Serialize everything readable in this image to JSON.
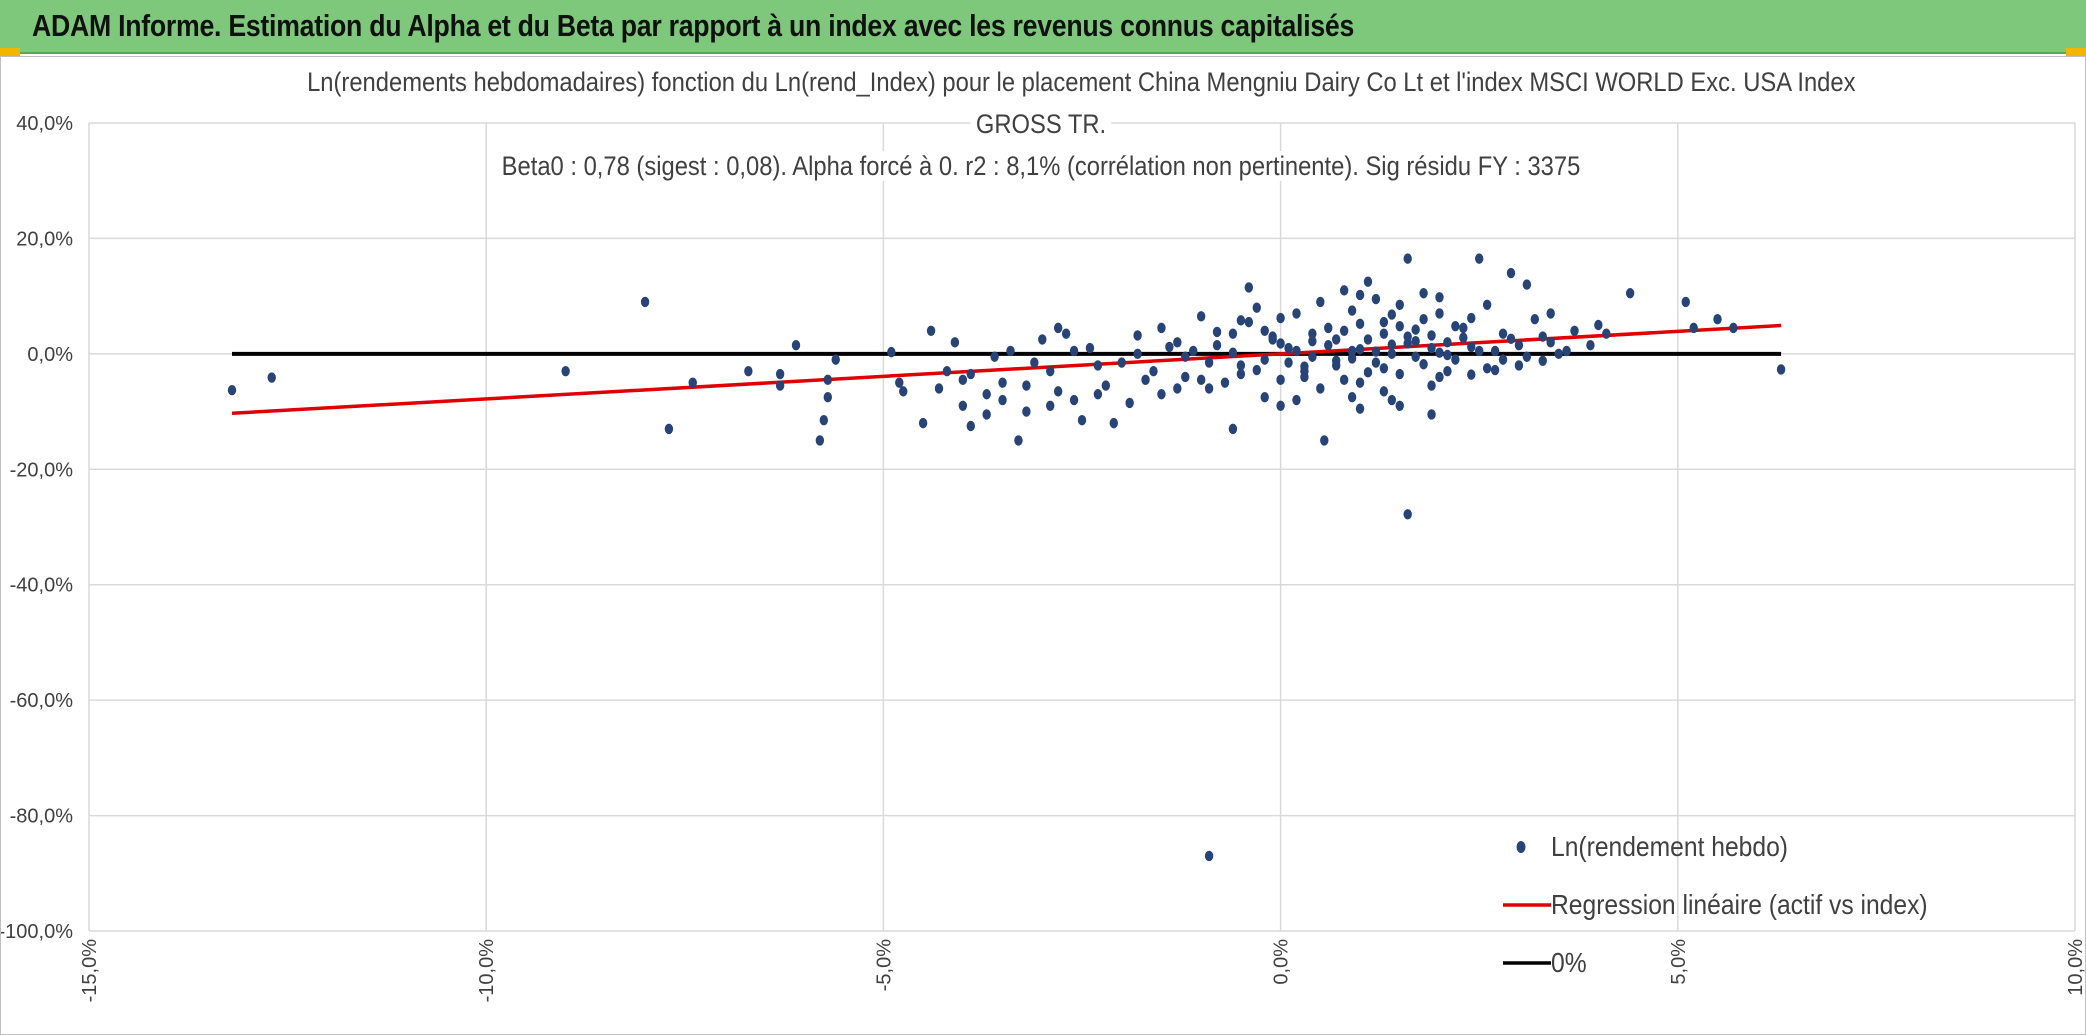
{
  "banner": {
    "title": "ADAM Informe. Estimation du Alpha et du Beta par rapport à un index avec les revenus connus capitalisés",
    "background_color": "#7dc87a",
    "accent_color": "#f2b500"
  },
  "chart_data": {
    "type": "scatter",
    "title_lines": [
      "Ln(rendements hebdomadaires) fonction du Ln(rend_Index) pour le placement China Mengniu Dairy Co Lt et l'index MSCI WORLD Exc. USA Index",
      "GROSS TR.",
      "Beta0 : 0,78 (sigest : 0,08). Alpha forcé à 0. r2 : 8,1% (corrélation non pertinente). Sig résidu FY : 3375"
    ],
    "x_ticks": [
      "-15,0%",
      "-10,0%",
      "-5,0%",
      "0,0%",
      "5,0%",
      "10,0%"
    ],
    "y_ticks": [
      "40,0%",
      "20,0%",
      "0,0%",
      "-20,0%",
      "-40,0%",
      "-60,0%",
      "-80,0%",
      "-100,0%"
    ],
    "xlim": [
      -15,
      10
    ],
    "ylim": [
      -100,
      40
    ],
    "grid": true,
    "legend_position": "bottom-right",
    "legend": [
      "Ln(rendement hebdo)",
      "Regression linéaire (actif vs index)",
      "0%"
    ],
    "colors": {
      "points": "#264478",
      "regression": "#e00000",
      "zero": "#000000",
      "grid": "#d9d9d9"
    },
    "regression": {
      "beta": 0.78,
      "alpha": 0,
      "x_range": [
        -13.2,
        6.3
      ]
    },
    "zero_line": {
      "x_range": [
        -13.2,
        6.3
      ],
      "y": 0
    },
    "points": [
      [
        -13.2,
        -6.3
      ],
      [
        -12.7,
        -4.1
      ],
      [
        -9.0,
        -3.0
      ],
      [
        -8.0,
        9.0
      ],
      [
        -7.7,
        -13.0
      ],
      [
        -7.4,
        -5.0
      ],
      [
        -6.7,
        -3.0
      ],
      [
        -6.3,
        -3.5
      ],
      [
        -6.3,
        -5.5
      ],
      [
        -6.1,
        1.5
      ],
      [
        -5.8,
        -15.0
      ],
      [
        -5.75,
        -11.5
      ],
      [
        -5.7,
        -4.5
      ],
      [
        -5.7,
        -7.5
      ],
      [
        -5.6,
        -1.0
      ],
      [
        -4.9,
        0.3
      ],
      [
        -4.8,
        -5.0
      ],
      [
        -4.75,
        -6.5
      ],
      [
        -4.5,
        -12.0
      ],
      [
        -4.4,
        4.0
      ],
      [
        -4.2,
        -3.0
      ],
      [
        -4.1,
        2.0
      ],
      [
        -4.0,
        -9.0
      ],
      [
        -3.9,
        -12.5
      ],
      [
        -3.7,
        -7.0
      ],
      [
        -3.6,
        -0.5
      ],
      [
        -3.5,
        -5.0
      ],
      [
        -3.3,
        -15.0
      ],
      [
        -3.2,
        -10.0
      ],
      [
        -3.2,
        -5.5
      ],
      [
        -3.0,
        2.5
      ],
      [
        -2.9,
        -3.0
      ],
      [
        -2.8,
        4.5
      ],
      [
        -2.6,
        -8.0
      ],
      [
        -2.5,
        -11.5
      ],
      [
        -2.3,
        -2.0
      ],
      [
        -2.1,
        -12.0
      ],
      [
        -1.9,
        -8.5
      ],
      [
        -1.8,
        0.0
      ],
      [
        -1.5,
        -7.0
      ],
      [
        -1.3,
        2.0
      ],
      [
        -1.2,
        -4.0
      ],
      [
        -1.0,
        6.5
      ],
      [
        -0.9,
        -6.0
      ],
      [
        -0.6,
        3.5
      ],
      [
        -0.5,
        -2.0
      ],
      [
        -0.4,
        5.5
      ],
      [
        -0.2,
        -1.0
      ],
      [
        -0.1,
        2.5
      ],
      [
        0.0,
        -4.5
      ],
      [
        0.1,
        1.0
      ],
      [
        0.2,
        7.0
      ],
      [
        0.3,
        -3.0
      ],
      [
        0.4,
        3.5
      ],
      [
        0.5,
        -6.0
      ],
      [
        0.6,
        1.5
      ],
      [
        0.7,
        -2.0
      ],
      [
        0.8,
        4.0
      ],
      [
        0.9,
        0.5
      ],
      [
        1.0,
        -5.0
      ],
      [
        1.1,
        2.5
      ],
      [
        1.2,
        -1.5
      ],
      [
        1.3,
        5.5
      ],
      [
        1.4,
        0.0
      ],
      [
        1.5,
        -3.5
      ],
      [
        1.6,
        3.0
      ],
      [
        1.7,
        -0.5
      ],
      [
        1.8,
        6.0
      ],
      [
        1.9,
        1.0
      ],
      [
        2.0,
        -4.0
      ],
      [
        2.1,
        2.0
      ],
      [
        2.3,
        4.5
      ],
      [
        2.5,
        0.5
      ],
      [
        2.6,
        -2.5
      ],
      [
        2.8,
        3.5
      ],
      [
        3.0,
        1.5
      ],
      [
        3.2,
        6.0
      ],
      [
        3.5,
        0.0
      ],
      [
        4.1,
        3.5
      ],
      [
        4.4,
        10.5
      ],
      [
        5.1,
        9.0
      ],
      [
        5.2,
        4.5
      ],
      [
        5.5,
        6.0
      ],
      [
        5.7,
        4.5
      ],
      [
        6.3,
        -2.7
      ],
      [
        -1.5,
        4.5
      ],
      [
        -1.2,
        -0.5
      ],
      [
        -0.8,
        1.5
      ],
      [
        -0.5,
        -3.5
      ],
      [
        -0.2,
        4.0
      ],
      [
        0.1,
        -1.5
      ],
      [
        0.4,
        -0.5
      ],
      [
        0.7,
        2.5
      ],
      [
        1.0,
        0.8
      ],
      [
        1.3,
        -2.5
      ],
      [
        1.6,
        1.8
      ],
      [
        1.9,
        3.2
      ],
      [
        2.2,
        -1.0
      ],
      [
        2.4,
        1.2
      ],
      [
        2.7,
        0.5
      ],
      [
        3.1,
        -0.5
      ],
      [
        3.4,
        2.0
      ],
      [
        3.6,
        0.5
      ],
      [
        -2.0,
        -1.5
      ],
      [
        -2.4,
        1.0
      ],
      [
        -1.6,
        -3.0
      ],
      [
        -0.3,
        8.0
      ],
      [
        0.5,
        9.0
      ],
      [
        1.2,
        9.5
      ],
      [
        1.5,
        8.5
      ],
      [
        2.0,
        7.0
      ],
      [
        2.6,
        8.5
      ],
      [
        0.8,
        11.0
      ],
      [
        1.1,
        12.5
      ],
      [
        1.6,
        16.5
      ],
      [
        2.9,
        14.0
      ],
      [
        3.1,
        12.0
      ],
      [
        2.5,
        16.5
      ],
      [
        -0.4,
        11.5
      ],
      [
        1.8,
        10.5
      ],
      [
        -0.6,
        -13.0
      ],
      [
        0.55,
        -15.0
      ],
      [
        1.5,
        -9.0
      ],
      [
        1.9,
        -10.5
      ],
      [
        1.6,
        -27.8
      ],
      [
        -0.9,
        -87.0
      ],
      [
        0.2,
        -8.0
      ],
      [
        -0.2,
        -7.5
      ],
      [
        1.0,
        -9.5
      ],
      [
        1.4,
        -8.0
      ],
      [
        -1.3,
        -6.0
      ],
      [
        -2.9,
        -9.0
      ],
      [
        -3.5,
        -8.0
      ],
      [
        -3.9,
        -3.5
      ],
      [
        -2.2,
        -5.5
      ],
      [
        -1.0,
        -4.5
      ],
      [
        0.0,
        -9.0
      ],
      [
        0.9,
        -7.5
      ],
      [
        -0.7,
        -5.0
      ],
      [
        0.3,
        -4.0
      ],
      [
        2.1,
        -3.0
      ],
      [
        2.8,
        -1.0
      ],
      [
        3.3,
        3.0
      ],
      [
        3.7,
        4.0
      ],
      [
        3.9,
        1.5
      ],
      [
        4.0,
        5.0
      ],
      [
        -0.1,
        3.0
      ],
      [
        0.6,
        4.5
      ],
      [
        1.3,
        3.5
      ],
      [
        1.7,
        2.2
      ],
      [
        2.2,
        4.8
      ],
      [
        -1.1,
        0.5
      ],
      [
        -0.9,
        -1.5
      ],
      [
        0.2,
        0.5
      ],
      [
        0.9,
        -0.8
      ],
      [
        1.1,
        -3.2
      ],
      [
        1.4,
        1.6
      ],
      [
        1.8,
        -1.8
      ],
      [
        2.4,
        -3.6
      ],
      [
        2.9,
        2.6
      ],
      [
        3.3,
        -1.2
      ],
      [
        -1.8,
        3.2
      ],
      [
        -1.4,
        1.2
      ],
      [
        -0.6,
        0.2
      ],
      [
        0.0,
        1.8
      ],
      [
        0.3,
        -2.2
      ],
      [
        0.7,
        -1.2
      ],
      [
        1.2,
        0.4
      ],
      [
        1.5,
        4.8
      ],
      [
        2.0,
        0.2
      ],
      [
        2.3,
        2.8
      ],
      [
        2.7,
        -2.8
      ],
      [
        3.0,
        -2.0
      ],
      [
        -2.6,
        0.5
      ],
      [
        -2.7,
        3.5
      ],
      [
        -3.1,
        -1.5
      ],
      [
        -3.4,
        0.5
      ],
      [
        -0.3,
        -2.8
      ],
      [
        0.4,
        2.2
      ],
      [
        1.0,
        5.2
      ],
      [
        1.7,
        4.2
      ],
      [
        2.1,
        -0.2
      ],
      [
        -0.8,
        3.8
      ],
      [
        -1.7,
        -4.5
      ],
      [
        -2.3,
        -7.0
      ],
      [
        -3.7,
        -10.5
      ],
      [
        -4.3,
        -6.0
      ],
      [
        -4.0,
        -4.5
      ],
      [
        -2.8,
        -6.5
      ],
      [
        0.8,
        -4.5
      ],
      [
        1.3,
        -6.5
      ],
      [
        1.9,
        -5.5
      ],
      [
        -0.5,
        5.8
      ],
      [
        0.0,
        6.2
      ],
      [
        0.9,
        7.5
      ],
      [
        1.4,
        6.8
      ],
      [
        2.4,
        6.2
      ],
      [
        3.4,
        7.0
      ],
      [
        2.0,
        9.8
      ],
      [
        1.0,
        10.2
      ]
    ]
  }
}
